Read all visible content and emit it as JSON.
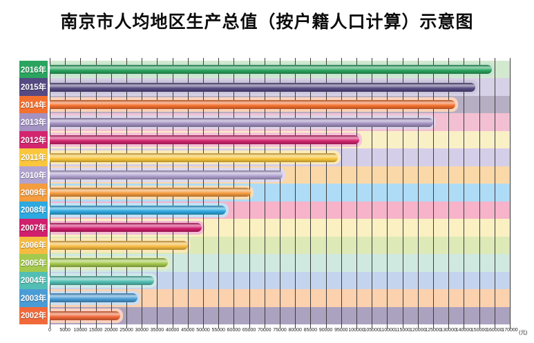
{
  "page": {
    "background": "#ffffff"
  },
  "chart_data": {
    "type": "bar",
    "orientation": "horizontal",
    "title": "南京市人均地区生产总值（按户籍人口计算）示意图",
    "unit_label": "(元)",
    "legend": "none",
    "grid": "on",
    "gridline_color": "#3b3b3b",
    "axis": {
      "min": 0,
      "max": 170000,
      "tick_values": [
        0,
        5000,
        10000,
        15000,
        20000,
        25000,
        30000,
        35000,
        40000,
        45000,
        50000,
        55000,
        60000,
        65000,
        70000,
        75000,
        80000,
        85000,
        90000,
        95000,
        100000,
        105000,
        110000,
        115000,
        120000,
        125000,
        130000,
        140000,
        150000,
        160000,
        170000
      ],
      "tick_labels": [
        "0",
        "5000",
        "10000",
        "15000",
        "20000",
        "25000",
        "30000",
        "35000",
        "40000",
        "45000",
        "50000",
        "55000",
        "60000",
        "65000",
        "70000",
        "75000",
        "80000",
        "85000",
        "90000",
        "95000",
        "100000",
        "105000",
        "110000",
        "115000",
        "120000",
        "125000",
        "130000",
        "140000",
        "150000",
        "160000",
        "170000"
      ]
    },
    "categories": [
      "2016年",
      "2015年",
      "2014年",
      "2013年",
      "2012年",
      "2011年",
      "2010年",
      "2009年",
      "2008年",
      "2007年",
      "2006年",
      "2005年",
      "2004年",
      "2003年",
      "2002年"
    ],
    "values": [
      158500,
      147500,
      134500,
      125000,
      101000,
      94000,
      76000,
      65500,
      57500,
      49500,
      45000,
      38500,
      34000,
      28500,
      23000
    ],
    "row_styles": [
      {
        "color": "#2aa45f",
        "halo": "#c8e6d0",
        "track": "#d2e9cf"
      },
      {
        "color": "#564a82",
        "halo": "#cdc7de",
        "track": "#d7d1e7"
      },
      {
        "color": "#f4702e",
        "halo": "#fbd3ba",
        "track": "#b6afc3"
      },
      {
        "color": "#a392c2",
        "halo": "#ddd5e9",
        "track": "#f3c0d3"
      },
      {
        "color": "#d3266f",
        "halo": "#f5c2d8",
        "track": "#faf0c6"
      },
      {
        "color": "#f9c63d",
        "halo": "#fdeab6",
        "track": "#d5cee8"
      },
      {
        "color": "#b1a3d0",
        "halo": "#dfd9ee",
        "track": "#fbd8a8"
      },
      {
        "color": "#f49c3e",
        "halo": "#fcdcb2",
        "track": "#aedcf6"
      },
      {
        "color": "#2ea9e0",
        "halo": "#c0e3f6",
        "track": "#f6b3ca"
      },
      {
        "color": "#d01f6d",
        "halo": "#f3bed5",
        "track": "#faf0c2"
      },
      {
        "color": "#f6bb41",
        "halo": "#fce8b8",
        "track": "#dde9b6"
      },
      {
        "color": "#a4c94e",
        "halo": "#e1edc4",
        "track": "#cfe9e0"
      },
      {
        "color": "#53bfb4",
        "halo": "#cfeae7",
        "track": "#c5d4ee"
      },
      {
        "color": "#4a9cd6",
        "halo": "#c9def2",
        "track": "#fbd1ae"
      },
      {
        "color": "#f1693a",
        "halo": "#fbd1be",
        "track": "#aba2c0"
      }
    ]
  }
}
